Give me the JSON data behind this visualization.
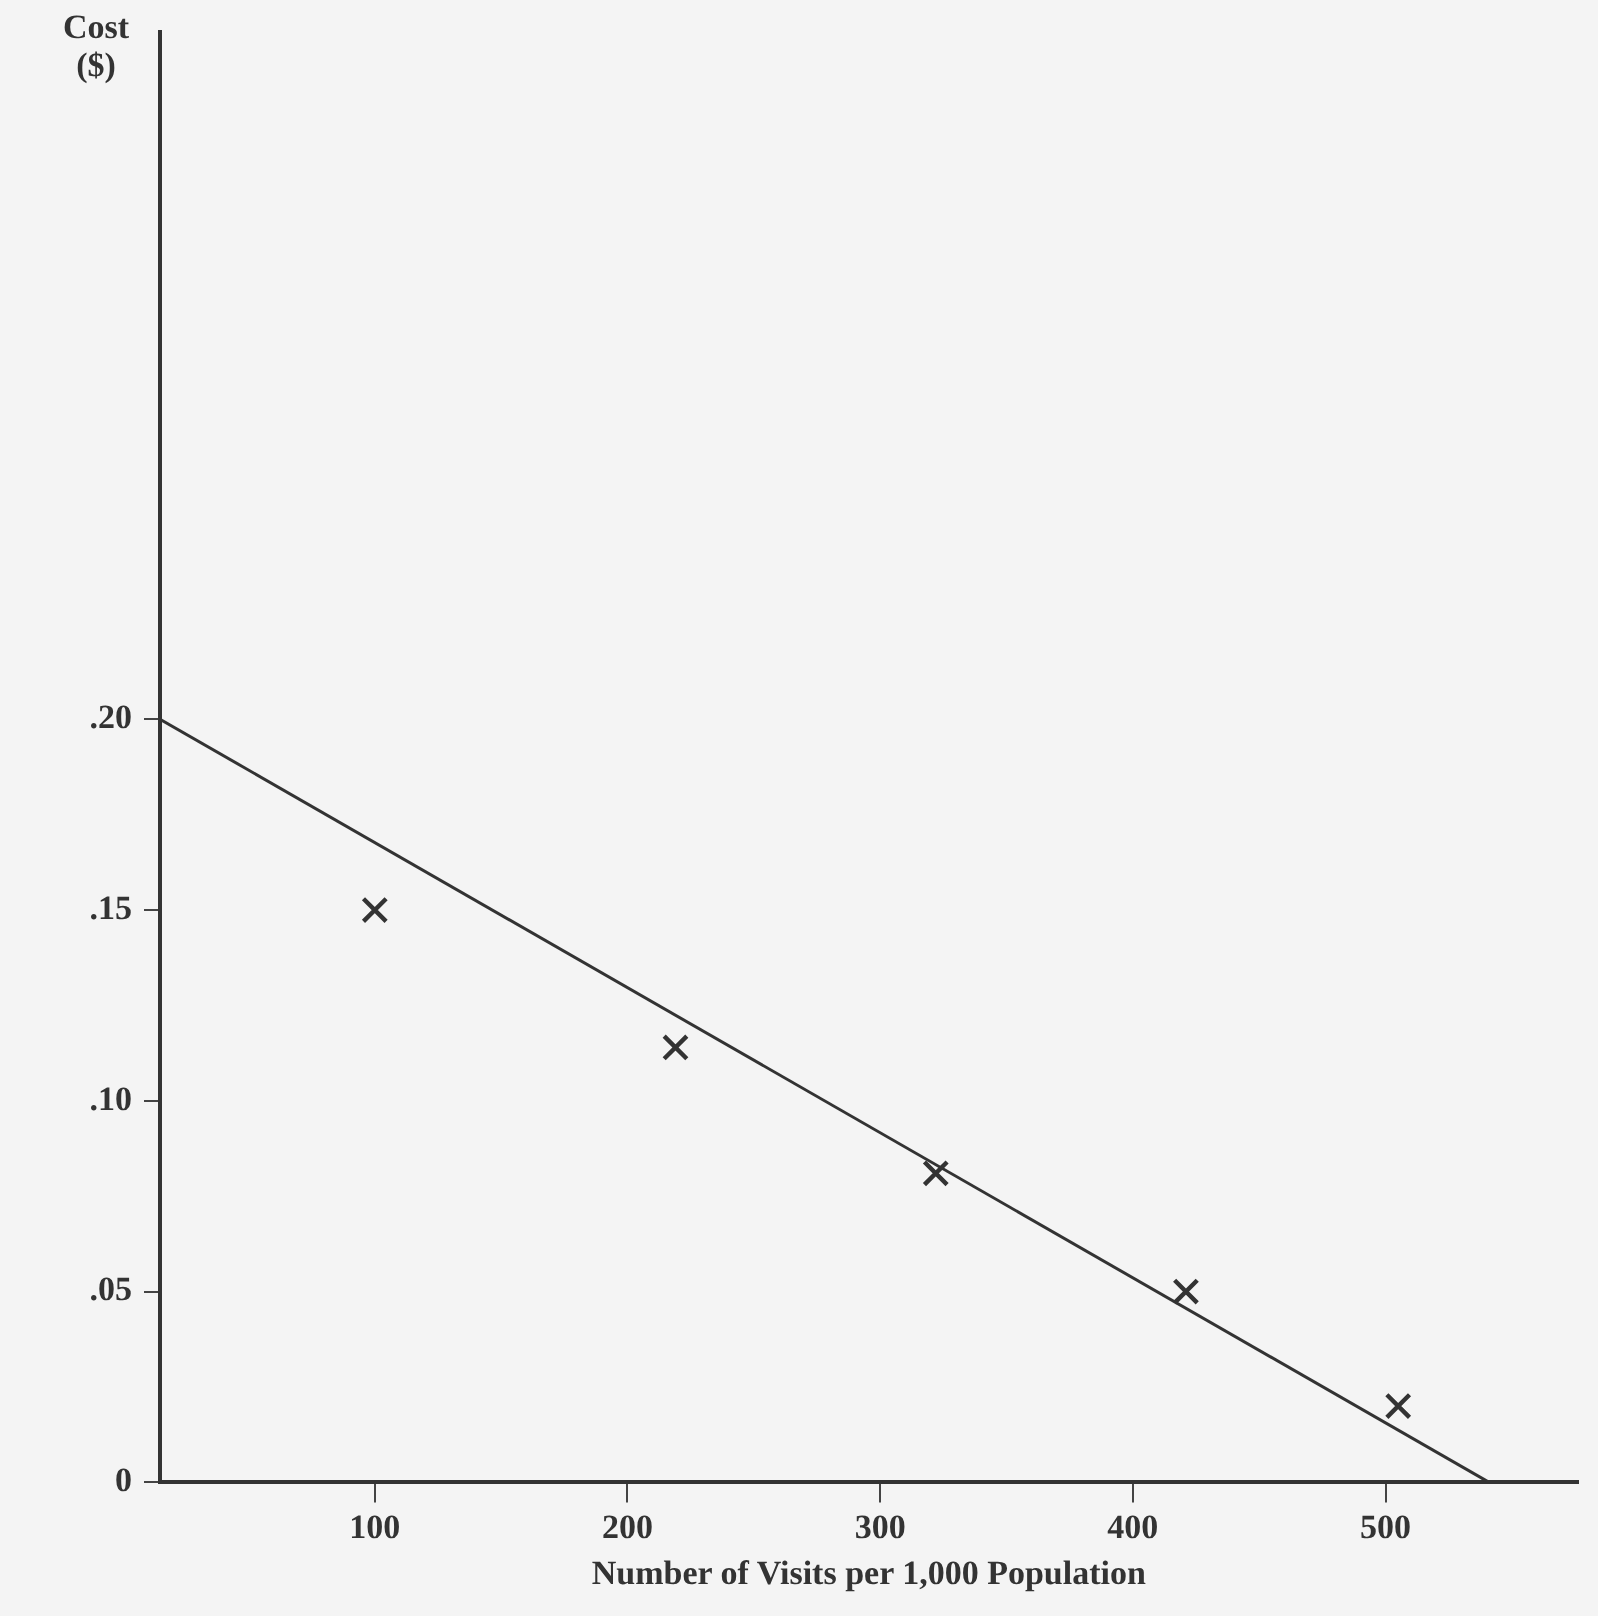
{
  "chart_data": {
    "type": "scatter",
    "xlabel": "Number of Visits per 1,000 Population",
    "ylabel": "Cost\n($)",
    "xlim": [
      15,
      576
    ],
    "xticks": [
      100,
      200,
      300,
      400,
      500
    ],
    "ylim": [
      0,
      0.38
    ],
    "yticks": [
      {
        "value": 0,
        "label": "0"
      },
      {
        "value": 0.05,
        "label": ".05"
      },
      {
        "value": 0.1,
        "label": ".10"
      },
      {
        "value": 0.15,
        "label": ".15"
      },
      {
        "value": 0.2,
        "label": ".20"
      }
    ],
    "grid": false,
    "legend": false,
    "series": [
      {
        "marker": "cross",
        "color": "#333333",
        "x": [
          100,
          219,
          322,
          421,
          505
        ],
        "values": [
          0.15,
          0.114,
          0.081,
          0.05,
          0.02
        ]
      },
      {
        "type": "line",
        "marker": "none",
        "line_style": "solid",
        "color": "#333333",
        "x": [
          15,
          541
        ],
        "values": [
          0.2,
          0
        ]
      }
    ]
  }
}
